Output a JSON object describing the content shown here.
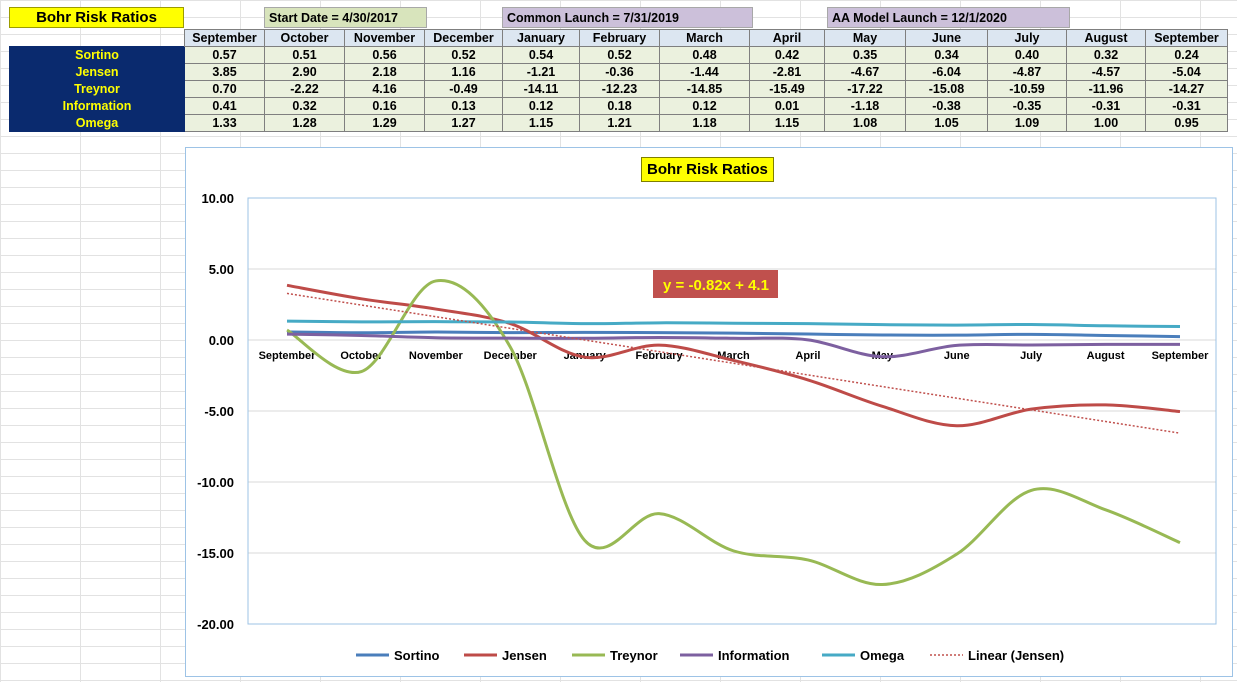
{
  "header": {
    "title": "Bohr Risk Ratios",
    "start_date": "Start Date = 4/30/2017",
    "common_launch": "Common Launch = 7/31/2019",
    "aa_launch": "AA Model Launch = 12/1/2020"
  },
  "table": {
    "months": [
      "September",
      "October",
      "November",
      "December",
      "January",
      "February",
      "March",
      "April",
      "May",
      "June",
      "July",
      "August",
      "September"
    ],
    "rows": [
      {
        "label": "Sortino",
        "values": [
          "0.57",
          "0.51",
          "0.56",
          "0.52",
          "0.54",
          "0.52",
          "0.48",
          "0.42",
          "0.35",
          "0.34",
          "0.40",
          "0.32",
          "0.24"
        ]
      },
      {
        "label": "Jensen",
        "values": [
          "3.85",
          "2.90",
          "2.18",
          "1.16",
          "-1.21",
          "-0.36",
          "-1.44",
          "-2.81",
          "-4.67",
          "-6.04",
          "-4.87",
          "-4.57",
          "-5.04"
        ]
      },
      {
        "label": "Treynor",
        "values": [
          "0.70",
          "-2.22",
          "4.16",
          "-0.49",
          "-14.11",
          "-12.23",
          "-14.85",
          "-15.49",
          "-17.22",
          "-15.08",
          "-10.59",
          "-11.96",
          "-14.27"
        ]
      },
      {
        "label": "Information",
        "values": [
          "0.41",
          "0.32",
          "0.16",
          "0.13",
          "0.12",
          "0.18",
          "0.12",
          "0.01",
          "-1.18",
          "-0.38",
          "-0.35",
          "-0.31",
          "-0.31"
        ]
      },
      {
        "label": "Omega",
        "values": [
          "1.33",
          "1.28",
          "1.29",
          "1.27",
          "1.15",
          "1.21",
          "1.18",
          "1.15",
          "1.08",
          "1.05",
          "1.09",
          "1.00",
          "0.95"
        ]
      }
    ]
  },
  "chart_data": {
    "type": "line",
    "title": "Bohr Risk Ratios",
    "categories": [
      "September",
      "October",
      "November",
      "December",
      "January",
      "February",
      "March",
      "April",
      "May",
      "June",
      "July",
      "August",
      "September"
    ],
    "ylim": [
      -20,
      10
    ],
    "yticks": [
      "10.00",
      "5.00",
      "0.00",
      "-5.00",
      "-10.00",
      "-15.00",
      "-20.00"
    ],
    "grid": true,
    "legend": "bottom",
    "trendline_label": "y = -0.82x + 4.1",
    "trendline": {
      "series": "Jensen",
      "slope": -0.82,
      "intercept": 4.1,
      "legend": "Linear (Jensen)"
    },
    "series": [
      {
        "name": "Sortino",
        "color": "#4a7ebb",
        "values": [
          0.57,
          0.51,
          0.56,
          0.52,
          0.54,
          0.52,
          0.48,
          0.42,
          0.35,
          0.34,
          0.4,
          0.32,
          0.24
        ]
      },
      {
        "name": "Jensen",
        "color": "#be4b48",
        "values": [
          3.85,
          2.9,
          2.18,
          1.16,
          -1.21,
          -0.36,
          -1.44,
          -2.81,
          -4.67,
          -6.04,
          -4.87,
          -4.57,
          -5.04
        ]
      },
      {
        "name": "Treynor",
        "color": "#98b954",
        "values": [
          0.7,
          -2.22,
          4.16,
          -0.49,
          -14.11,
          -12.23,
          -14.85,
          -15.49,
          -17.22,
          -15.08,
          -10.59,
          -11.96,
          -14.27
        ]
      },
      {
        "name": "Information",
        "color": "#7d60a0",
        "values": [
          0.41,
          0.32,
          0.16,
          0.13,
          0.12,
          0.18,
          0.12,
          0.01,
          -1.18,
          -0.38,
          -0.35,
          -0.31,
          -0.31
        ]
      },
      {
        "name": "Omega",
        "color": "#46aac5",
        "values": [
          1.33,
          1.28,
          1.29,
          1.27,
          1.15,
          1.21,
          1.18,
          1.15,
          1.08,
          1.05,
          1.09,
          1.0,
          0.95
        ]
      }
    ],
    "trendline_color": "#c0504d"
  }
}
